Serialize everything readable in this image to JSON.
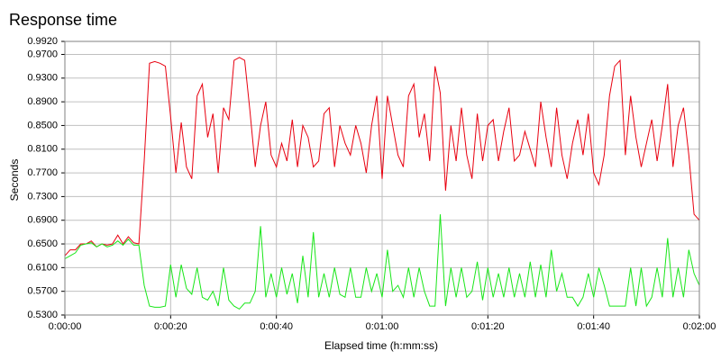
{
  "chart_data": {
    "type": "line",
    "title": "Response time",
    "xlabel": "Elapsed time (h:mm:ss)",
    "ylabel": "Seconds",
    "xlim": [
      0,
      120
    ],
    "ylim": [
      0.53,
      0.992
    ],
    "yticks": [
      0.53,
      0.57,
      0.61,
      0.65,
      0.69,
      0.73,
      0.77,
      0.81,
      0.85,
      0.89,
      0.93,
      0.97,
      0.992
    ],
    "ytick_labels": [
      "0.5300",
      "0.5700",
      "0.6100",
      "0.6500",
      "0.6900",
      "0.7300",
      "0.7700",
      "0.8100",
      "0.8500",
      "0.8900",
      "0.9300",
      "0.9700",
      "0.9920"
    ],
    "xticks": [
      0,
      20,
      40,
      60,
      80,
      100,
      120
    ],
    "xtick_labels": [
      "0:00:00",
      "0:00:20",
      "0:00:40",
      "0:01:00",
      "0:01:20",
      "0:01:40",
      "0:02:00"
    ],
    "grid": true,
    "colors": {
      "series_red": "#e8000f",
      "series_green": "#19e619",
      "grid": "#c0c0c0",
      "frame": "#808080"
    },
    "series": [
      {
        "color": "#e8000f",
        "x": [
          0,
          1,
          2,
          3,
          4,
          5,
          6,
          7,
          8,
          9,
          10,
          11,
          12,
          13,
          14,
          15,
          16,
          17,
          18,
          19,
          20,
          21,
          22,
          23,
          24,
          25,
          26,
          27,
          28,
          29,
          30,
          31,
          32,
          33,
          34,
          35,
          36,
          37,
          38,
          39,
          40,
          41,
          42,
          43,
          44,
          45,
          46,
          47,
          48,
          49,
          50,
          51,
          52,
          53,
          54,
          55,
          56,
          57,
          58,
          59,
          60,
          61,
          62,
          63,
          64,
          65,
          66,
          67,
          68,
          69,
          70,
          71,
          72,
          73,
          74,
          75,
          76,
          77,
          78,
          79,
          80,
          81,
          82,
          83,
          84,
          85,
          86,
          87,
          88,
          89,
          90,
          91,
          92,
          93,
          94,
          95,
          96,
          97,
          98,
          99,
          100,
          101,
          102,
          103,
          104,
          105,
          106,
          107,
          108,
          109,
          110,
          111,
          112,
          113,
          114,
          115,
          116,
          117,
          118,
          119,
          120
        ],
        "y": [
          0.63,
          0.64,
          0.64,
          0.65,
          0.65,
          0.655,
          0.645,
          0.65,
          0.648,
          0.65,
          0.665,
          0.65,
          0.662,
          0.652,
          0.65,
          0.79,
          0.955,
          0.958,
          0.955,
          0.95,
          0.865,
          0.77,
          0.855,
          0.78,
          0.76,
          0.9,
          0.92,
          0.83,
          0.87,
          0.77,
          0.88,
          0.86,
          0.96,
          0.965,
          0.96,
          0.875,
          0.78,
          0.85,
          0.89,
          0.8,
          0.78,
          0.82,
          0.79,
          0.86,
          0.78,
          0.85,
          0.83,
          0.78,
          0.79,
          0.87,
          0.88,
          0.78,
          0.85,
          0.82,
          0.8,
          0.85,
          0.82,
          0.77,
          0.85,
          0.9,
          0.76,
          0.9,
          0.85,
          0.8,
          0.78,
          0.9,
          0.92,
          0.83,
          0.87,
          0.79,
          0.95,
          0.905,
          0.74,
          0.85,
          0.79,
          0.88,
          0.8,
          0.76,
          0.87,
          0.79,
          0.85,
          0.86,
          0.79,
          0.84,
          0.88,
          0.79,
          0.8,
          0.84,
          0.81,
          0.78,
          0.89,
          0.83,
          0.78,
          0.88,
          0.8,
          0.76,
          0.82,
          0.86,
          0.8,
          0.87,
          0.77,
          0.75,
          0.8,
          0.9,
          0.95,
          0.96,
          0.8,
          0.9,
          0.83,
          0.78,
          0.82,
          0.86,
          0.79,
          0.85,
          0.92,
          0.78,
          0.85,
          0.88,
          0.8,
          0.7,
          0.69
        ]
      },
      {
        "color": "#19e619",
        "x": [
          0,
          1,
          2,
          3,
          4,
          5,
          6,
          7,
          8,
          9,
          10,
          11,
          12,
          13,
          14,
          15,
          16,
          17,
          18,
          19,
          20,
          21,
          22,
          23,
          24,
          25,
          26,
          27,
          28,
          29,
          30,
          31,
          32,
          33,
          34,
          35,
          36,
          37,
          38,
          39,
          40,
          41,
          42,
          43,
          44,
          45,
          46,
          47,
          48,
          49,
          50,
          51,
          52,
          53,
          54,
          55,
          56,
          57,
          58,
          59,
          60,
          61,
          62,
          63,
          64,
          65,
          66,
          67,
          68,
          69,
          70,
          71,
          72,
          73,
          74,
          75,
          76,
          77,
          78,
          79,
          80,
          81,
          82,
          83,
          84,
          85,
          86,
          87,
          88,
          89,
          90,
          91,
          92,
          93,
          94,
          95,
          96,
          97,
          98,
          99,
          100,
          101,
          102,
          103,
          104,
          105,
          106,
          107,
          108,
          109,
          110,
          111,
          112,
          113,
          114,
          115,
          116,
          117,
          118,
          119,
          120
        ],
        "y": [
          0.625,
          0.63,
          0.635,
          0.648,
          0.65,
          0.652,
          0.645,
          0.65,
          0.645,
          0.648,
          0.655,
          0.648,
          0.658,
          0.648,
          0.648,
          0.58,
          0.545,
          0.543,
          0.543,
          0.545,
          0.615,
          0.56,
          0.615,
          0.575,
          0.565,
          0.61,
          0.56,
          0.555,
          0.57,
          0.545,
          0.61,
          0.555,
          0.545,
          0.54,
          0.55,
          0.55,
          0.57,
          0.68,
          0.56,
          0.6,
          0.56,
          0.61,
          0.565,
          0.6,
          0.55,
          0.63,
          0.56,
          0.67,
          0.56,
          0.6,
          0.56,
          0.61,
          0.565,
          0.56,
          0.61,
          0.56,
          0.56,
          0.61,
          0.57,
          0.6,
          0.56,
          0.64,
          0.57,
          0.58,
          0.56,
          0.61,
          0.56,
          0.61,
          0.57,
          0.545,
          0.545,
          0.7,
          0.545,
          0.61,
          0.56,
          0.61,
          0.56,
          0.57,
          0.62,
          0.555,
          0.61,
          0.56,
          0.6,
          0.56,
          0.61,
          0.56,
          0.6,
          0.56,
          0.62,
          0.56,
          0.615,
          0.56,
          0.64,
          0.57,
          0.6,
          0.56,
          0.56,
          0.545,
          0.56,
          0.6,
          0.56,
          0.61,
          0.58,
          0.545,
          0.545,
          0.545,
          0.545,
          0.61,
          0.545,
          0.61,
          0.545,
          0.56,
          0.61,
          0.56,
          0.66,
          0.56,
          0.61,
          0.56,
          0.64,
          0.6,
          0.58
        ]
      }
    ]
  }
}
